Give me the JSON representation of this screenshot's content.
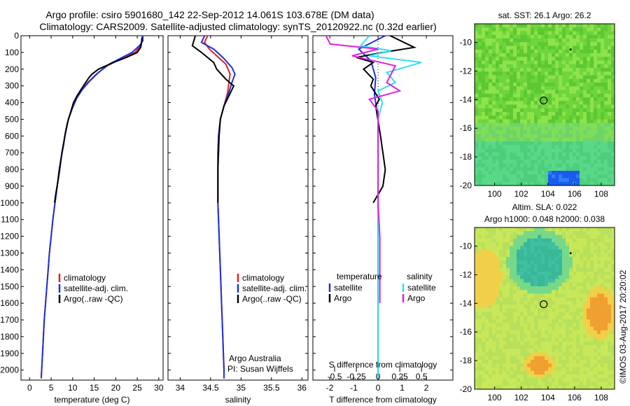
{
  "header": {
    "line1": "Argo profile: csiro 5901680_142 22-Sep-2012 14.061S 103.678E (DM data)",
    "line2": "Climatology: CARS2009. Satellite-adjusted climatology: synTS_20120922.nc (0.32d earlier)"
  },
  "side_stamp": "©IMOS 03-Aug-2017 20:20:02",
  "colors": {
    "red": "#e02020",
    "blue": "#1a33e0",
    "black": "#000000",
    "cyan": "#30e0f0",
    "magenta": "#e020e0"
  },
  "chart_data": [
    {
      "type": "line",
      "id": "temperature",
      "xlabel": "temperature (deg C)",
      "ylabel": "",
      "xlim": [
        -2,
        31
      ],
      "ylim": [
        2060,
        0
      ],
      "xticks": [
        0,
        5,
        10,
        15,
        20,
        25,
        30
      ],
      "yticks": [
        0,
        100,
        200,
        300,
        400,
        500,
        600,
        700,
        800,
        900,
        1000,
        1100,
        1200,
        1300,
        1400,
        1500,
        1600,
        1700,
        1800,
        1900,
        2000
      ],
      "legend": [
        "climatology",
        "satellite-adj. clim.",
        "Argo(..raw -QC)"
      ],
      "series": [
        {
          "name": "climatology",
          "color": "red",
          "points": [
            [
              26.2,
              0
            ],
            [
              26.1,
              30
            ],
            [
              25.8,
              60
            ],
            [
              24.5,
              100
            ],
            [
              21,
              140
            ],
            [
              18,
              180
            ],
            [
              15.5,
              230
            ],
            [
              13.5,
              280
            ],
            [
              12,
              330
            ],
            [
              10.8,
              380
            ],
            [
              9.8,
              440
            ],
            [
              9,
              500
            ],
            [
              8.2,
              600
            ],
            [
              7.5,
              700
            ],
            [
              7,
              800
            ],
            [
              6.4,
              900
            ],
            [
              5.9,
              1000
            ],
            [
              5.4,
              1100
            ],
            [
              5,
              1200
            ],
            [
              4.6,
              1300
            ],
            [
              4.3,
              1400
            ],
            [
              4,
              1500
            ],
            [
              3.7,
              1600
            ],
            [
              3.4,
              1700
            ],
            [
              3.2,
              1800
            ],
            [
              3,
              1900
            ],
            [
              2.8,
              2000
            ],
            [
              2.7,
              2050
            ]
          ]
        },
        {
          "name": "satellite-adj. clim.",
          "color": "blue",
          "points": [
            [
              26.3,
              0
            ],
            [
              26.3,
              30
            ],
            [
              25.5,
              60
            ],
            [
              23.8,
              100
            ],
            [
              21.5,
              130
            ],
            [
              18.5,
              170
            ],
            [
              16,
              220
            ],
            [
              14,
              270
            ],
            [
              12.3,
              320
            ],
            [
              11,
              370
            ],
            [
              10,
              430
            ],
            [
              9,
              500
            ],
            [
              8.2,
              600
            ],
            [
              7.5,
              700
            ],
            [
              7,
              800
            ],
            [
              6.4,
              900
            ],
            [
              5.9,
              1000
            ],
            [
              5.4,
              1100
            ],
            [
              5,
              1200
            ],
            [
              4.6,
              1300
            ],
            [
              4.3,
              1400
            ],
            [
              4,
              1500
            ],
            [
              3.7,
              1600
            ],
            [
              3.4,
              1700
            ],
            [
              3.2,
              1800
            ],
            [
              3,
              1900
            ],
            [
              2.8,
              2000
            ],
            [
              2.7,
              2050
            ]
          ]
        },
        {
          "name": "Argo(..raw -QC)",
          "color": "black",
          "points": [
            [
              26.1,
              10
            ],
            [
              26,
              40
            ],
            [
              25.8,
              70
            ],
            [
              25,
              100
            ],
            [
              22.5,
              130
            ],
            [
              19.5,
              160
            ],
            [
              16,
              200
            ],
            [
              14.5,
              230
            ],
            [
              13.8,
              250
            ],
            [
              13,
              280
            ],
            [
              12,
              320
            ],
            [
              11,
              360
            ],
            [
              10.2,
              400
            ],
            [
              9.5,
              460
            ],
            [
              8.8,
              520
            ],
            [
              8.3,
              580
            ],
            [
              7.9,
              650
            ],
            [
              7.4,
              720
            ],
            [
              6.9,
              800
            ],
            [
              6.5,
              880
            ],
            [
              6,
              960
            ],
            [
              5.8,
              1000
            ]
          ]
        }
      ]
    },
    {
      "type": "line",
      "id": "salinity",
      "xlabel": "salinity",
      "xlim": [
        33.8,
        36.1
      ],
      "ylim": [
        2060,
        0
      ],
      "xticks": [
        34,
        34.5,
        35,
        35.5,
        36
      ],
      "legend": [
        "climatology",
        "satellite-adj. clim.",
        "Argo(..raw -QC)"
      ],
      "series": [
        {
          "name": "climatology",
          "color": "red",
          "points": [
            [
              34.45,
              0
            ],
            [
              34.4,
              40
            ],
            [
              34.48,
              80
            ],
            [
              34.6,
              120
            ],
            [
              34.75,
              170
            ],
            [
              34.82,
              230
            ],
            [
              34.8,
              280
            ],
            [
              34.78,
              340
            ],
            [
              34.72,
              420
            ],
            [
              34.66,
              500
            ],
            [
              34.63,
              600
            ],
            [
              34.62,
              700
            ],
            [
              34.62,
              800
            ],
            [
              34.62,
              900
            ],
            [
              34.62,
              1000
            ],
            [
              34.63,
              1100
            ],
            [
              34.64,
              1200
            ],
            [
              34.65,
              1300
            ],
            [
              34.66,
              1400
            ],
            [
              34.67,
              1500
            ],
            [
              34.68,
              1600
            ],
            [
              34.69,
              1700
            ],
            [
              34.7,
              1800
            ],
            [
              34.71,
              1900
            ],
            [
              34.72,
              2000
            ],
            [
              34.72,
              2050
            ]
          ]
        },
        {
          "name": "satellite-adj. clim.",
          "color": "blue",
          "points": [
            [
              34.4,
              0
            ],
            [
              34.35,
              40
            ],
            [
              34.55,
              80
            ],
            [
              34.7,
              130
            ],
            [
              34.85,
              190
            ],
            [
              34.9,
              230
            ],
            [
              34.85,
              280
            ],
            [
              34.8,
              340
            ],
            [
              34.72,
              420
            ],
            [
              34.66,
              500
            ],
            [
              34.63,
              600
            ],
            [
              34.62,
              700
            ],
            [
              34.62,
              800
            ],
            [
              34.62,
              900
            ],
            [
              34.62,
              1000
            ],
            [
              34.63,
              1100
            ],
            [
              34.64,
              1200
            ],
            [
              34.65,
              1300
            ],
            [
              34.66,
              1400
            ],
            [
              34.67,
              1500
            ],
            [
              34.68,
              1600
            ],
            [
              34.69,
              1700
            ],
            [
              34.7,
              1800
            ],
            [
              34.71,
              1900
            ],
            [
              34.72,
              2000
            ],
            [
              34.72,
              2050
            ]
          ]
        },
        {
          "name": "Argo(..raw -QC)",
          "color": "black",
          "points": [
            [
              34.25,
              0
            ],
            [
              34.2,
              60
            ],
            [
              34.35,
              100
            ],
            [
              34.55,
              160
            ],
            [
              34.6,
              200
            ],
            [
              34.75,
              260
            ],
            [
              34.88,
              300
            ],
            [
              34.8,
              360
            ],
            [
              34.72,
              420
            ],
            [
              34.66,
              500
            ],
            [
              34.64,
              600
            ],
            [
              34.63,
              700
            ],
            [
              34.62,
              800
            ],
            [
              34.62,
              900
            ],
            [
              34.62,
              1000
            ]
          ]
        }
      ]
    },
    {
      "type": "line",
      "id": "difference",
      "xlabel": "T difference from climatology",
      "xlabel_top": "S difference from climatology",
      "xlim": [
        -2.7,
        3.1
      ],
      "ylim": [
        2060,
        0
      ],
      "xticks": [
        -2,
        -1,
        0,
        1,
        2
      ],
      "sticks": [
        -0.5,
        -0.25,
        0,
        0.25,
        0.5
      ],
      "stick_labels": [
        "-0.5",
        "-0.25",
        "0",
        "0.25",
        "0.5"
      ],
      "legend_headers": [
        "temperature",
        "salinity"
      ],
      "legend": [
        "satellite",
        "Argo",
        "satellite",
        "Argo"
      ],
      "series": [
        {
          "name": "T satellite",
          "color": "blue",
          "points": [
            [
              0.3,
              0
            ],
            [
              -0.8,
              80
            ],
            [
              -0.3,
              150
            ],
            [
              -0.1,
              250
            ],
            [
              -0.15,
              350
            ],
            [
              0,
              500
            ],
            [
              0,
              1000
            ],
            [
              0,
              2050
            ]
          ]
        },
        {
          "name": "T Argo",
          "color": "black",
          "points": [
            [
              0.5,
              0
            ],
            [
              1.5,
              70
            ],
            [
              0.2,
              100
            ],
            [
              -0.9,
              130
            ],
            [
              -0.2,
              160
            ],
            [
              -0.6,
              200
            ],
            [
              -0.2,
              260
            ],
            [
              -0.3,
              300
            ],
            [
              0.05,
              380
            ],
            [
              -0.1,
              420
            ],
            [
              0.1,
              600
            ],
            [
              0.2,
              700
            ],
            [
              0.3,
              800
            ],
            [
              0.2,
              900
            ],
            [
              -0.2,
              1000
            ]
          ]
        },
        {
          "name": "S satellite",
          "color": "cyan",
          "points": [
            [
              -0.1,
              0
            ],
            [
              -0.2,
              60
            ],
            [
              0.15,
              90
            ],
            [
              -0.1,
              120
            ],
            [
              0.5,
              160
            ],
            [
              0.1,
              220
            ],
            [
              0.2,
              280
            ],
            [
              0,
              330
            ],
            [
              0.05,
              400
            ],
            [
              0,
              500
            ],
            [
              0,
              1000
            ],
            [
              0,
              2050
            ]
          ]
        },
        {
          "name": "S Argo",
          "color": "magenta",
          "points": [
            [
              -0.6,
              0
            ],
            [
              -0.55,
              50
            ],
            [
              0,
              80
            ],
            [
              -0.3,
              120
            ],
            [
              0.2,
              180
            ],
            [
              0.1,
              280
            ],
            [
              0.25,
              330
            ],
            [
              -0.1,
              380
            ],
            [
              0,
              450
            ],
            [
              0,
              600
            ],
            [
              0,
              800
            ],
            [
              0,
              1000
            ],
            [
              0.02,
              1200
            ],
            [
              0.02,
              1400
            ],
            [
              0.02,
              1600
            ]
          ]
        }
      ]
    },
    {
      "type": "heatmap",
      "id": "sst-map",
      "title": "sat. SST: 26.1 Argo: 26.2",
      "xticks": [
        100,
        102,
        104,
        106,
        108
      ],
      "yticks": [
        -10,
        -12,
        -14,
        -16,
        -18,
        -20
      ],
      "xlim": [
        98.5,
        109
      ],
      "ylim": [
        -20,
        -8.7
      ],
      "argo_position": [
        103.68,
        -14.06
      ],
      "marker": [
        105.7,
        -10.5
      ]
    },
    {
      "type": "heatmap",
      "id": "sla-map",
      "title": "Altim. SLA: 0.022",
      "subtitle": "Argo h1000: 0.048 h2000: 0.038",
      "xticks": [
        100,
        102,
        104,
        106,
        108
      ],
      "yticks": [
        -10,
        -12,
        -14,
        -16,
        -18,
        -20
      ],
      "xlim": [
        98.5,
        109
      ],
      "ylim": [
        -20,
        -8.7
      ],
      "argo_position": [
        103.68,
        -14.06
      ],
      "marker": [
        105.7,
        -10.5
      ]
    }
  ],
  "footer_text": {
    "credit1": "Argo Australia",
    "credit2": "PI: Susan Wijffels"
  }
}
